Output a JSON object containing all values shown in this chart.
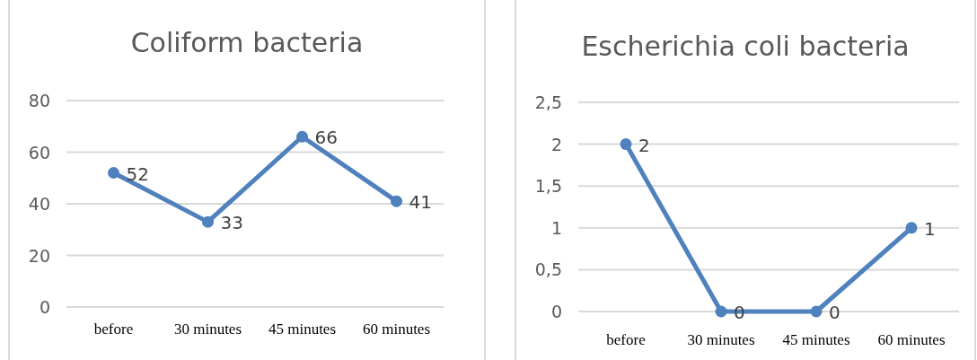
{
  "chart_data": [
    {
      "type": "line",
      "title": "Coliform bacteria",
      "categories": [
        "before",
        "30 minutes",
        "45 minutes",
        "60 minutes"
      ],
      "series": [
        {
          "color": "#4f81bd",
          "values": [
            52,
            33,
            66,
            41
          ]
        }
      ],
      "ylim": [
        0,
        80
      ],
      "yticks": [
        0,
        20,
        40,
        60,
        80
      ],
      "grid": "y",
      "marker": "circle",
      "data_labels": true
    },
    {
      "type": "line",
      "title": "Escherichia coli bacteria",
      "categories": [
        "before",
        "30 minutes",
        "45 minutes",
        "60 minutes"
      ],
      "series": [
        {
          "color": "#4f81bd",
          "values": [
            2,
            0,
            0,
            1
          ]
        }
      ],
      "ylim": [
        0,
        2.5
      ],
      "yticks": [
        0,
        {
          "value": 0.5,
          "label": "0,5"
        },
        1,
        {
          "value": 1.5,
          "label": "1,5"
        },
        2,
        {
          "value": 2.5,
          "label": "2,5"
        }
      ],
      "grid": "y",
      "marker": "circle",
      "data_labels": true
    }
  ]
}
